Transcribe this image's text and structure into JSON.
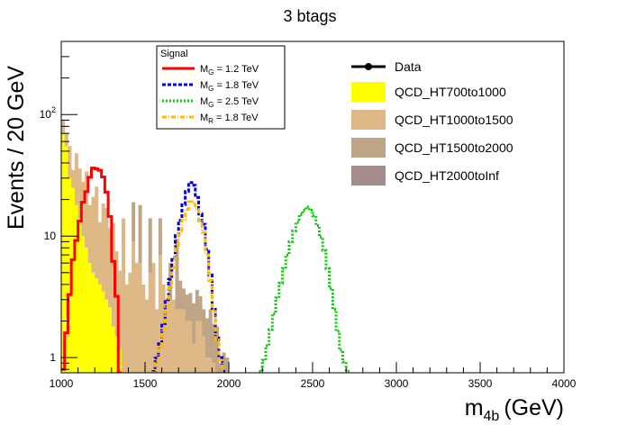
{
  "chart_data": {
    "type": "area",
    "title": "3 btags",
    "xlabel_main": "m",
    "xlabel_sub": "4b",
    "xlabel_unit": "(GeV)",
    "ylabel": "Events / 20 GeV",
    "xlim": [
      1000,
      4000
    ],
    "ylim": [
      0.75,
      400
    ],
    "yscale": "log",
    "bin_width": 20,
    "x_ticks": [
      "1000",
      "1500",
      "2000",
      "2500",
      "3000",
      "3500",
      "4000"
    ],
    "y_ticks": [
      {
        "value": 1,
        "label": "1"
      },
      {
        "value": 10,
        "label": "10"
      },
      {
        "value": 100,
        "label": "10",
        "exponent": "2"
      }
    ],
    "x_bins": [
      1000,
      1020,
      1040,
      1060,
      1080,
      1100,
      1120,
      1140,
      1160,
      1180,
      1200,
      1220,
      1240,
      1260,
      1280,
      1300,
      1320,
      1340,
      1360,
      1380,
      1400,
      1420,
      1440,
      1460,
      1480,
      1500,
      1520,
      1540,
      1560,
      1580,
      1600,
      1620,
      1640,
      1660,
      1680,
      1700,
      1720,
      1740,
      1760,
      1780,
      1800,
      1820,
      1840,
      1860,
      1880,
      1900,
      1920,
      1940,
      1960,
      1980
    ],
    "background_series": [
      {
        "name": "QCD_HT700to1000",
        "color": "#ffff00",
        "values": [
          70,
          55,
          30,
          25,
          18,
          14,
          10,
          8,
          6,
          5,
          4.5,
          4,
          3.5,
          3,
          2.6,
          1.8,
          1.5,
          1.2,
          0,
          0,
          0,
          0,
          0,
          0,
          0,
          0,
          0,
          0,
          0,
          0,
          0,
          0,
          0,
          0,
          0,
          0,
          0,
          0,
          0,
          0,
          0,
          0,
          0,
          0,
          0,
          0,
          0,
          0,
          0,
          0
        ]
      },
      {
        "name": "QCD_HT1000to1500",
        "color": "#deb887",
        "values": [
          20,
          15,
          25,
          10,
          30,
          22,
          18,
          26,
          12,
          16,
          21,
          9,
          15,
          14,
          9,
          11,
          6,
          4,
          14,
          4,
          5,
          9,
          6,
          6,
          4,
          3,
          5,
          6,
          2.5,
          7,
          4,
          3,
          3,
          3,
          2.5,
          2.5,
          2.5,
          2,
          2,
          1.3,
          2,
          2,
          1.5,
          1,
          1,
          0.9,
          0.6,
          0,
          0,
          0
        ]
      },
      {
        "name": "QCD_HT1500to2000",
        "color": "#bea587",
        "values": [
          0,
          0,
          0,
          0,
          0,
          0,
          0,
          0,
          0,
          0,
          0,
          0,
          0,
          0,
          0,
          0,
          0,
          0,
          0,
          0,
          0,
          10,
          0,
          12,
          0,
          0,
          9,
          0,
          0,
          7,
          0,
          0,
          3,
          0,
          7,
          1.8,
          1.2,
          1.3,
          1.4,
          1.5,
          1.6,
          1.2,
          1.0,
          1.1,
          1.5,
          1.0,
          1.2,
          0.9,
          1.1,
          1.0
        ]
      },
      {
        "name": "QCD_HT2000toInf",
        "color": "#a58c8c",
        "values": [
          0,
          0,
          0,
          0,
          0,
          0,
          0,
          0,
          0,
          0,
          0,
          0,
          0,
          0,
          0,
          0,
          0,
          0,
          0,
          0,
          0,
          0,
          0,
          0,
          0,
          0,
          0,
          0,
          0,
          0,
          0,
          0,
          0,
          0,
          0,
          0,
          0,
          0,
          0,
          0,
          0,
          0,
          0,
          0,
          0,
          0,
          0,
          0,
          0,
          0
        ]
      }
    ],
    "data_series": {
      "name": "Data",
      "values": []
    },
    "signal_series": [
      {
        "name_main": "M",
        "name_sub": "G",
        "name_rest": " = 1.2 TeV",
        "color": "#ff0000",
        "dash": "",
        "x": [
          1000,
          1020,
          1040,
          1060,
          1080,
          1100,
          1120,
          1140,
          1160,
          1180,
          1200,
          1220,
          1240,
          1260,
          1280,
          1300,
          1320,
          1340
        ],
        "values": [
          0.8,
          1.6,
          3.3,
          6.4,
          9.2,
          13.3,
          19.0,
          23.2,
          30.5,
          36.3,
          35.8,
          34.8,
          30.7,
          23.0,
          14.5,
          6.2,
          3.2,
          0.75
        ]
      },
      {
        "name_main": "M",
        "name_sub": "G",
        "name_rest": " = 1.8 TeV",
        "color": "#0000dd",
        "dash": "4,2",
        "x": [
          1540,
          1560,
          1580,
          1600,
          1620,
          1640,
          1660,
          1680,
          1700,
          1720,
          1740,
          1760,
          1780,
          1800,
          1820,
          1840,
          1860,
          1880,
          1900,
          1920,
          1940,
          1960
        ],
        "values": [
          0.77,
          0.99,
          1.3,
          1.9,
          3.0,
          4.4,
          6.6,
          10.1,
          13.5,
          18.1,
          23.3,
          27.6,
          26.2,
          20.8,
          15.2,
          12.5,
          7.8,
          4.8,
          2.5,
          1.45,
          1.0,
          0.77
        ]
      },
      {
        "name_main": "M",
        "name_sub": "G",
        "name_rest": " = 2.5 TeV",
        "color": "#00cc00",
        "dash": "2,2",
        "x": [
          2180,
          2200,
          2220,
          2240,
          2260,
          2280,
          2300,
          2320,
          2340,
          2360,
          2380,
          2400,
          2420,
          2440,
          2460,
          2480,
          2500,
          2520,
          2540,
          2560,
          2580,
          2600,
          2620,
          2640,
          2660,
          2680,
          2700
        ],
        "values": [
          0.77,
          0.95,
          1.25,
          1.7,
          2.3,
          3.1,
          4.1,
          5.4,
          7.0,
          9.0,
          11.0,
          13.0,
          15.0,
          16.3,
          17.4,
          16.3,
          14.7,
          12.2,
          9.8,
          7.6,
          5.4,
          3.7,
          2.5,
          1.65,
          1.15,
          0.92,
          0.77
        ]
      },
      {
        "name_main": "M",
        "name_sub": "R",
        "name_rest": " = 1.8 TeV",
        "color": "#ffbb00",
        "dash": "5,2,1,2",
        "x": [
          1540,
          1560,
          1580,
          1600,
          1620,
          1640,
          1660,
          1680,
          1700,
          1720,
          1740,
          1760,
          1780,
          1800,
          1820,
          1840,
          1860,
          1880,
          1900,
          1920,
          1940,
          1960
        ],
        "values": [
          0.75,
          0.9,
          1.2,
          1.7,
          2.6,
          3.8,
          5.5,
          8.0,
          10.5,
          13.6,
          16.6,
          19.2,
          18.8,
          16.6,
          13.2,
          10.7,
          7.0,
          4.3,
          2.4,
          1.4,
          0.95,
          0.77
        ]
      }
    ],
    "signal_legend_title": "Signal",
    "legend_position": "top-right",
    "grid": false
  }
}
